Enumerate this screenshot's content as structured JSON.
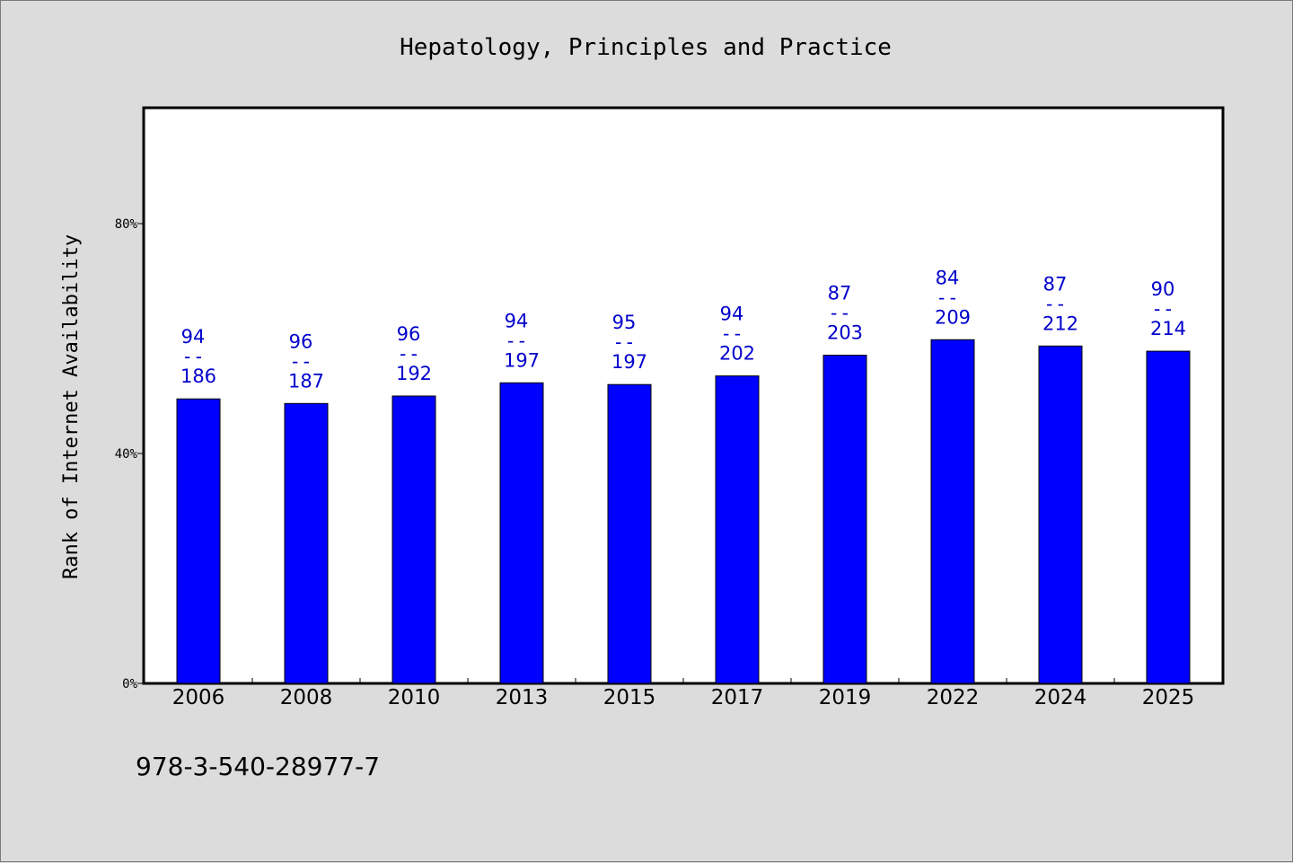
{
  "chart_data": {
    "type": "bar",
    "title": "Hepatology, Principles and Practice",
    "xlabel": "",
    "ylabel": "Rank of Internet Availability",
    "ylim": [
      0,
      100
    ],
    "yticks": [
      {
        "value": 0,
        "label": "0%"
      },
      {
        "value": 40,
        "label": "40%"
      },
      {
        "value": 80,
        "label": "80%"
      }
    ],
    "categories": [
      "2006",
      "2008",
      "2010",
      "2013",
      "2015",
      "2017",
      "2019",
      "2022",
      "2024",
      "2025"
    ],
    "values": [
      49.5,
      48.7,
      50.0,
      52.3,
      52.0,
      53.5,
      57.1,
      59.8,
      58.7,
      57.8
    ],
    "data_labels": [
      {
        "top": "94",
        "sep": "--",
        "bottom": "186"
      },
      {
        "top": "96",
        "sep": "--",
        "bottom": "187"
      },
      {
        "top": "96",
        "sep": "--",
        "bottom": "192"
      },
      {
        "top": "94",
        "sep": "--",
        "bottom": "197"
      },
      {
        "top": "95",
        "sep": "--",
        "bottom": "197"
      },
      {
        "top": "94",
        "sep": "--",
        "bottom": "202"
      },
      {
        "top": "87",
        "sep": "--",
        "bottom": "203"
      },
      {
        "top": "84",
        "sep": "--",
        "bottom": "209"
      },
      {
        "top": "87",
        "sep": "--",
        "bottom": "212"
      },
      {
        "top": "90",
        "sep": "--",
        "bottom": "214"
      }
    ],
    "grid": false,
    "legend": "none",
    "colors": {
      "bar": "#0000ff",
      "label": "#0000cc"
    }
  },
  "footer": {
    "isbn": "978-3-540-28977-7"
  }
}
